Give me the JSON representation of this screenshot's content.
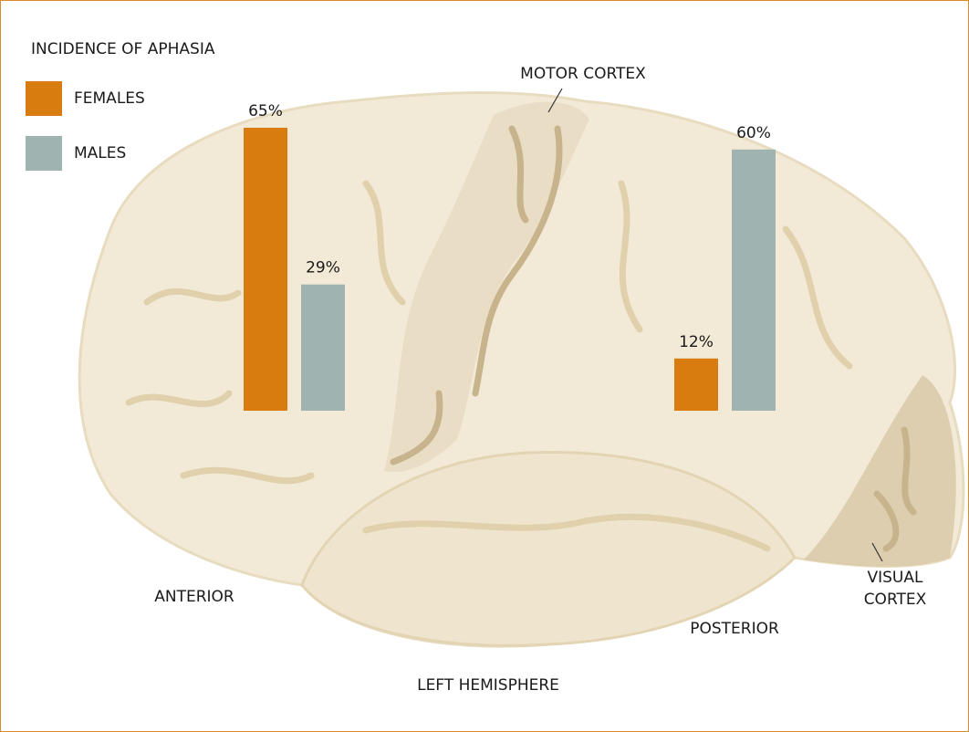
{
  "chart_data": {
    "type": "bar",
    "title": "INCIDENCE OF APHASIA",
    "categories": [
      "ANTERIOR",
      "POSTERIOR"
    ],
    "series": [
      {
        "name": "FEMALES",
        "color": "#d97c10",
        "values": [
          65,
          12
        ],
        "value_labels": [
          "65%",
          "12%"
        ]
      },
      {
        "name": "MALES",
        "color": "#9fb3b1",
        "values": [
          29,
          60
        ],
        "value_labels": [
          "29%",
          "60%"
        ]
      }
    ],
    "annotations": [
      "MOTOR CORTEX",
      "VISUAL CORTEX",
      "LEFT HEMISPHERE"
    ]
  }
}
